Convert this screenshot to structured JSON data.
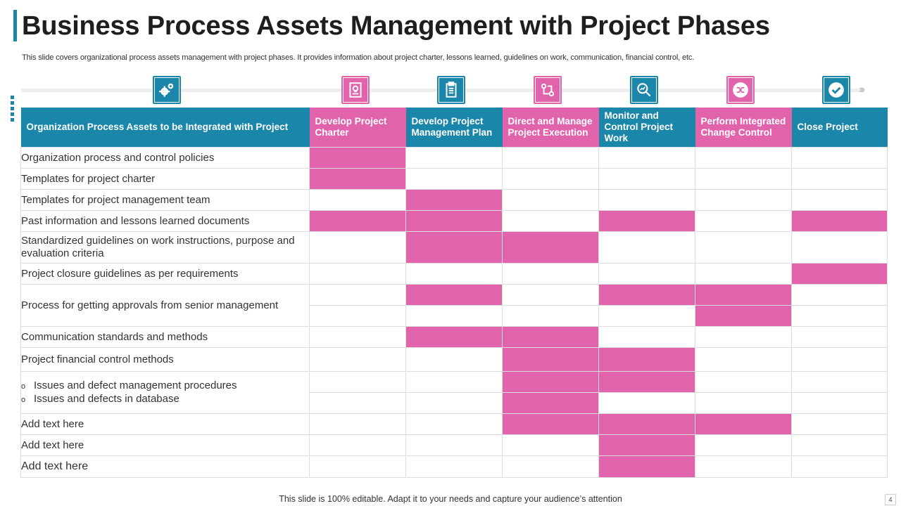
{
  "title": "Business Process Assets Management with Project Phases",
  "subtitle": "This slide covers organizational process assets management with project phases. It provides information about project charter, lessons learned, guidelines on work, communication, financial control, etc.",
  "header": {
    "first_column": "Organization Process  Assets  to be Integrated with Project",
    "phases": [
      "Develop Project Charter",
      "Develop Project Management Plan",
      "Direct and Manage Project Execution",
      "Monitor and Control Project Work",
      "Perform Integrated Change Control",
      "Close Project"
    ]
  },
  "icons": [
    "gears-icon",
    "document-tree-icon",
    "clipboard-icon",
    "workflow-icon",
    "magnifier-chart-icon",
    "shuffle-icon",
    "checkmark-icon"
  ],
  "rows": {
    "r1": "Organization process and control policies",
    "r2": "Templates for project charter",
    "r3": "Templates for project management team",
    "r4": "Past information and lessons learned documents",
    "r5": "Standardized guidelines  on work instructions, purpose and evaluation  criteria",
    "r6": "Project closure guidelines as per requirements",
    "r7": "Process for getting approvals from senior management",
    "r8": "Communication standards and methods",
    "r9": "Project financial control methods",
    "r10_a": "Issues and defect management procedures",
    "r10_b": "Issues and defects in database",
    "r11": "Add text here",
    "r12": "Add text here",
    "r13": "Add text here"
  },
  "bullet_symbol": "o",
  "footer": "This slide is 100% editable. Adapt it to your needs and capture your audience’s attention",
  "page_number": "4",
  "colors": {
    "teal": "#1a86a9",
    "pink": "#e063ab"
  }
}
